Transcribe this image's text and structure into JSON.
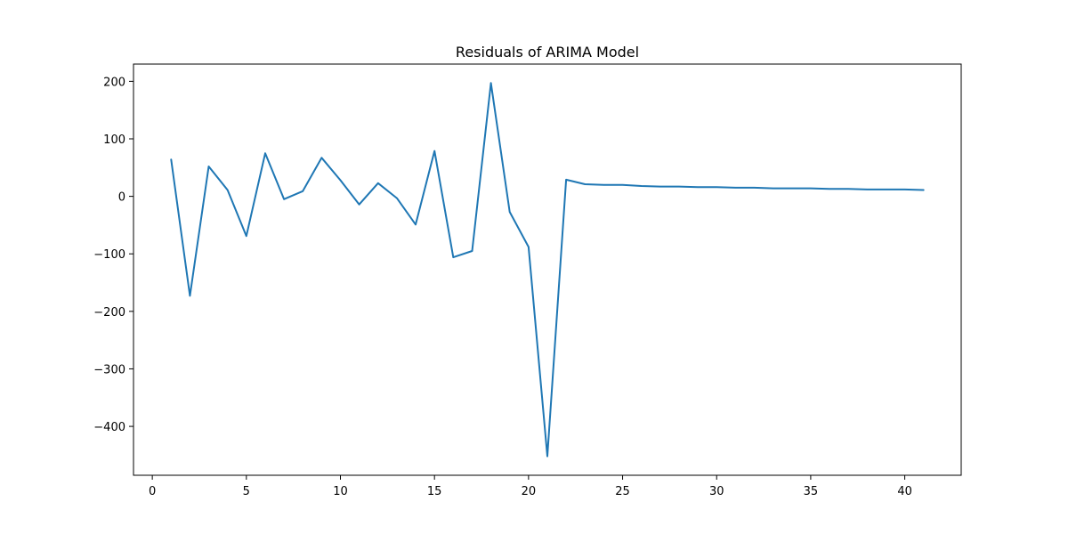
{
  "chart_data": {
    "type": "line",
    "title": "Residuals of ARIMA Model",
    "xlabel": "",
    "ylabel": "",
    "xlim": [
      -1,
      43
    ],
    "ylim": [
      -485,
      230
    ],
    "xticks": [
      0,
      5,
      10,
      15,
      20,
      25,
      30,
      35,
      40
    ],
    "yticks": [
      -400,
      -300,
      -200,
      -100,
      0,
      100,
      200
    ],
    "grid": false,
    "series": [
      {
        "color": "#1f77b4",
        "x": [
          1,
          2,
          3,
          4,
          5,
          6,
          7,
          8,
          9,
          10,
          11,
          12,
          13,
          14,
          15,
          16,
          17,
          18,
          19,
          20,
          21,
          22,
          23,
          24,
          25,
          26,
          27,
          28,
          29,
          30,
          31,
          32,
          33,
          34,
          35,
          36,
          37,
          38,
          39,
          40,
          41
        ],
        "y": [
          64,
          -173,
          52,
          11,
          -69,
          75,
          -5,
          9,
          67,
          28,
          -14,
          23,
          -3,
          -49,
          79,
          -106,
          -95,
          197,
          -27,
          -88,
          -452,
          29,
          21,
          20,
          20,
          18,
          17,
          17,
          16,
          16,
          15,
          15,
          14,
          14,
          14,
          13,
          13,
          12,
          12,
          12,
          11
        ]
      }
    ]
  }
}
